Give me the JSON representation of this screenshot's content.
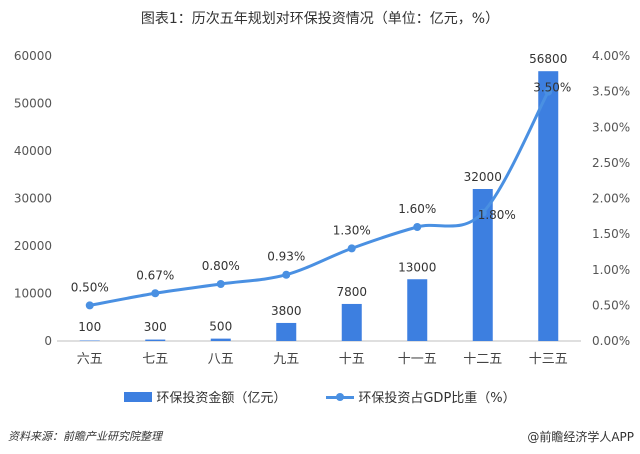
{
  "chart_data": {
    "type": "bar+line",
    "title": "图表1：历次五年规划对环保投资情况（单位：亿元，%）",
    "categories": [
      "六五",
      "七五",
      "八五",
      "九五",
      "十五",
      "十一五",
      "十二五",
      "十三五"
    ],
    "series": [
      {
        "name": "环保投资金额（亿元）",
        "type": "bar",
        "axis": "left",
        "color": "#3d7fe0",
        "values": [
          100,
          300,
          500,
          3800,
          7800,
          13000,
          32000,
          56800
        ],
        "labels": [
          "100",
          "300",
          "500",
          "3800",
          "7800",
          "13000",
          "32000",
          "56800"
        ]
      },
      {
        "name": "环保投资占GDP比重（%）",
        "type": "line",
        "axis": "right",
        "color": "#4a90e2",
        "smooth": true,
        "values": [
          0.5,
          0.67,
          0.8,
          0.93,
          1.3,
          1.6,
          1.8,
          3.5
        ],
        "labels": [
          "0.50%",
          "0.67%",
          "0.80%",
          "0.93%",
          "1.30%",
          "1.60%",
          "1.80%",
          "3.50%"
        ]
      }
    ],
    "y_left": {
      "lim": [
        0,
        60000
      ],
      "ticks": [
        "0",
        "10000",
        "20000",
        "30000",
        "40000",
        "50000",
        "60000"
      ]
    },
    "y_right": {
      "lim": [
        0,
        4
      ],
      "ticks": [
        "0.00%",
        "0.50%",
        "1.00%",
        "1.50%",
        "2.00%",
        "2.50%",
        "3.00%",
        "3.50%",
        "4.00%"
      ]
    },
    "grid": false,
    "legend": "bottom"
  },
  "source": "资料来源：前瞻产业研究院整理",
  "credit": "@前瞻经济学人APP"
}
